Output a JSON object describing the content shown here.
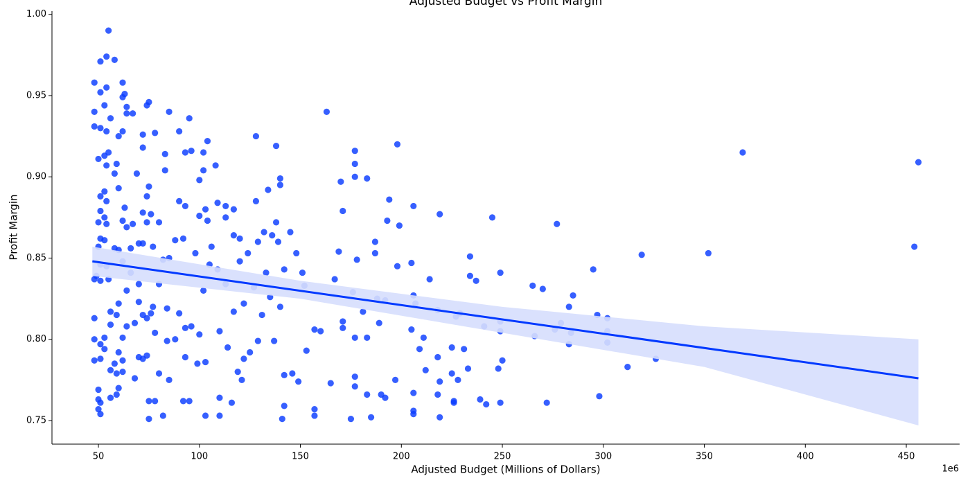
{
  "chart_data": {
    "type": "scatter",
    "title": "Adjusted Budget vs Profit Margin",
    "x_label": "Adjusted Budget (Millions of Dollars)",
    "y_label": "Profit Margin",
    "x_offset_label": "1e6",
    "color": "#0a3cff",
    "line_color": "#0039ff",
    "band_color": "#d6defd",
    "xlim": [
      27,
      476.4
    ],
    "ylim": [
      0.7355,
      1.002
    ],
    "xticks": [
      50,
      100,
      150,
      200,
      250,
      300,
      350,
      400,
      450
    ],
    "yticks": [
      0.75,
      {
        "value": 0.8,
        "label": "0.80"
      },
      0.85,
      {
        "value": 0.9,
        "label": "0.90"
      },
      0.95,
      {
        "value": 1.0,
        "label": "1.00"
      }
    ],
    "x": [
      48,
      48,
      48,
      48,
      48,
      48,
      48,
      49,
      50,
      50,
      50,
      50,
      50,
      50,
      51,
      51,
      51,
      51,
      51,
      51,
      51,
      51,
      51,
      51,
      51,
      51,
      53,
      53,
      53,
      53,
      53,
      53,
      53,
      54,
      54,
      54,
      54,
      54,
      54,
      54,
      55,
      55,
      55,
      56,
      56,
      56,
      56,
      56,
      58,
      58,
      58,
      58,
      59,
      59,
      59,
      59,
      60,
      60,
      60,
      60,
      60,
      60,
      62,
      62,
      62,
      62,
      62,
      62,
      62,
      62,
      63,
      63,
      64,
      64,
      64,
      64,
      64,
      66,
      66,
      67,
      67,
      68,
      68,
      69,
      70,
      70,
      70,
      70,
      72,
      72,
      72,
      72,
      72,
      72,
      74,
      74,
      74,
      74,
      74,
      75,
      75,
      75,
      75,
      76,
      76,
      77,
      77,
      78,
      78,
      78,
      80,
      80,
      80,
      82,
      82,
      83,
      83,
      84,
      84,
      85,
      85,
      85,
      88,
      88,
      90,
      90,
      90,
      92,
      92,
      93,
      93,
      93,
      93,
      95,
      95,
      96,
      96,
      98,
      99,
      100,
      100,
      100,
      102,
      102,
      102,
      103,
      103,
      103,
      104,
      104,
      105,
      106,
      108,
      109,
      109,
      110,
      110,
      110,
      113,
      113,
      113,
      114,
      116,
      117,
      117,
      117,
      119,
      120,
      120,
      121,
      122,
      122,
      124,
      125,
      127,
      128,
      128,
      129,
      129,
      131,
      132,
      133,
      134,
      135,
      136,
      137,
      138,
      138,
      139,
      140,
      140,
      140,
      141,
      142,
      142,
      142,
      145,
      146,
      148,
      149,
      151,
      152,
      153,
      157,
      157,
      157,
      160,
      163,
      165,
      167,
      169,
      170,
      171,
      171,
      171,
      175,
      176,
      177,
      177,
      177,
      177,
      177,
      177,
      178,
      181,
      183,
      183,
      183,
      185,
      187,
      187,
      188,
      189,
      190,
      192,
      192,
      193,
      194,
      197,
      198,
      198,
      199,
      205,
      205,
      206,
      206,
      206,
      206,
      206,
      207,
      209,
      211,
      212,
      214,
      218,
      218,
      218,
      219,
      219,
      219,
      225,
      225,
      226,
      226,
      227,
      228,
      229,
      231,
      233,
      234,
      234,
      237,
      239,
      241,
      242,
      245,
      248,
      249,
      249,
      249,
      249,
      250,
      265,
      266,
      270,
      272,
      276,
      277,
      279,
      283,
      283,
      284,
      285,
      295,
      297,
      298,
      302,
      302,
      302,
      312,
      326,
      319,
      352,
      369,
      454,
      456
    ],
    "values": [
      0.958,
      0.94,
      0.931,
      0.837,
      0.813,
      0.8,
      0.787,
      0.839,
      0.911,
      0.872,
      0.857,
      0.769,
      0.763,
      0.757,
      0.971,
      0.952,
      0.93,
      0.888,
      0.879,
      0.862,
      0.846,
      0.836,
      0.797,
      0.788,
      0.761,
      0.754,
      0.944,
      0.913,
      0.891,
      0.875,
      0.861,
      0.801,
      0.794,
      0.974,
      0.955,
      0.928,
      0.907,
      0.885,
      0.871,
      0.845,
      0.99,
      0.915,
      0.837,
      0.936,
      0.817,
      0.809,
      0.781,
      0.764,
      0.972,
      0.902,
      0.856,
      0.785,
      0.908,
      0.815,
      0.779,
      0.766,
      0.925,
      0.893,
      0.855,
      0.822,
      0.792,
      0.77,
      0.958,
      0.949,
      0.928,
      0.873,
      0.848,
      0.801,
      0.787,
      0.78,
      0.951,
      0.881,
      0.943,
      0.939,
      0.869,
      0.83,
      0.808,
      0.856,
      0.841,
      0.939,
      0.871,
      0.81,
      0.776,
      0.902,
      0.859,
      0.834,
      0.823,
      0.789,
      0.926,
      0.918,
      0.878,
      0.859,
      0.815,
      0.788,
      0.944,
      0.888,
      0.872,
      0.813,
      0.79,
      0.946,
      0.894,
      0.762,
      0.751,
      0.877,
      0.816,
      0.857,
      0.82,
      0.927,
      0.804,
      0.762,
      0.872,
      0.834,
      0.779,
      0.849,
      0.753,
      0.904,
      0.914,
      0.819,
      0.799,
      0.94,
      0.85,
      0.775,
      0.861,
      0.8,
      0.928,
      0.885,
      0.816,
      0.862,
      0.762,
      0.915,
      0.882,
      0.807,
      0.789,
      0.936,
      0.762,
      0.916,
      0.808,
      0.853,
      0.785,
      0.898,
      0.876,
      0.803,
      0.915,
      0.904,
      0.83,
      0.88,
      0.786,
      0.753,
      0.922,
      0.873,
      0.846,
      0.857,
      0.907,
      0.884,
      0.843,
      0.805,
      0.764,
      0.753,
      0.882,
      0.875,
      0.834,
      0.795,
      0.761,
      0.88,
      0.864,
      0.817,
      0.78,
      0.862,
      0.848,
      0.775,
      0.822,
      0.788,
      0.853,
      0.792,
      0.832,
      0.925,
      0.885,
      0.86,
      0.799,
      0.815,
      0.866,
      0.841,
      0.892,
      0.826,
      0.864,
      0.799,
      0.919,
      0.872,
      0.86,
      0.895,
      0.899,
      0.82,
      0.751,
      0.843,
      0.778,
      0.759,
      0.866,
      0.779,
      0.853,
      0.774,
      0.841,
      0.833,
      0.793,
      0.806,
      0.757,
      0.753,
      0.805,
      0.94,
      0.773,
      0.837,
      0.854,
      0.897,
      0.879,
      0.811,
      0.807,
      0.751,
      0.829,
      0.916,
      0.908,
      0.9,
      0.801,
      0.777,
      0.771,
      0.849,
      0.817,
      0.899,
      0.801,
      0.766,
      0.752,
      0.86,
      0.853,
      0.825,
      0.81,
      0.766,
      0.824,
      0.764,
      0.873,
      0.886,
      0.775,
      0.92,
      0.845,
      0.87,
      0.847,
      0.806,
      0.882,
      0.827,
      0.767,
      0.756,
      0.754,
      0.822,
      0.794,
      0.801,
      0.781,
      0.837,
      0.818,
      0.789,
      0.766,
      0.877,
      0.774,
      0.752,
      0.795,
      0.779,
      0.762,
      0.761,
      0.814,
      0.775,
      0.816,
      0.794,
      0.782,
      0.839,
      0.851,
      0.836,
      0.763,
      0.808,
      0.76,
      0.875,
      0.782,
      0.841,
      0.811,
      0.805,
      0.761,
      0.787,
      0.833,
      0.802,
      0.831,
      0.761,
      0.806,
      0.871,
      0.81,
      0.82,
      0.797,
      0.804,
      0.827,
      0.843,
      0.815,
      0.765,
      0.813,
      0.805,
      0.798,
      0.783,
      0.788,
      0.852,
      0.853,
      0.915,
      0.857,
      0.909
    ],
    "regression": {
      "x": [
        47,
        456
      ],
      "y": [
        0.848,
        0.776
      ]
    },
    "band": {
      "x": [
        47,
        150,
        250,
        350,
        456
      ],
      "lower": [
        0.839,
        0.825,
        0.804,
        0.783,
        0.747
      ],
      "upper": [
        0.857,
        0.836,
        0.82,
        0.808,
        0.8
      ]
    }
  }
}
